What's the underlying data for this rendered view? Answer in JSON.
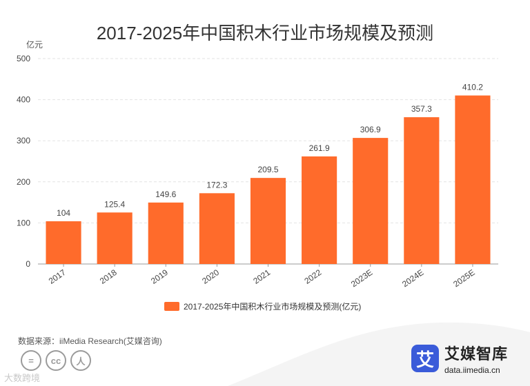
{
  "colors": {
    "bar": "#ff6b2b",
    "logo": "#3a5bd9"
  },
  "source_text": "数据来源：iiMedia Research(艾媒咨询)",
  "footer_note": "大数跨境",
  "cc_icons": [
    "=",
    "cc",
    "人"
  ],
  "brand": {
    "logo_char": "艾",
    "name": "艾媒智库",
    "url": "data.iimedia.cn"
  },
  "chart_data": {
    "type": "bar",
    "title": "2017-2025年中国积木行业市场规模及预测",
    "ylabel": "亿元",
    "xlabel": "",
    "ylim": [
      0,
      500
    ],
    "yticks": [
      0,
      100,
      200,
      300,
      400,
      500
    ],
    "categories": [
      "2017",
      "2018",
      "2019",
      "2020",
      "2021",
      "2022",
      "2023E",
      "2024E",
      "2025E"
    ],
    "series": [
      {
        "name": "2017-2025年中国积木行业市场规模及预测(亿元)",
        "values": [
          104,
          125.4,
          149.6,
          172.3,
          209.5,
          261.9,
          306.9,
          357.3,
          410.2
        ]
      }
    ],
    "legend_position": "bottom"
  }
}
